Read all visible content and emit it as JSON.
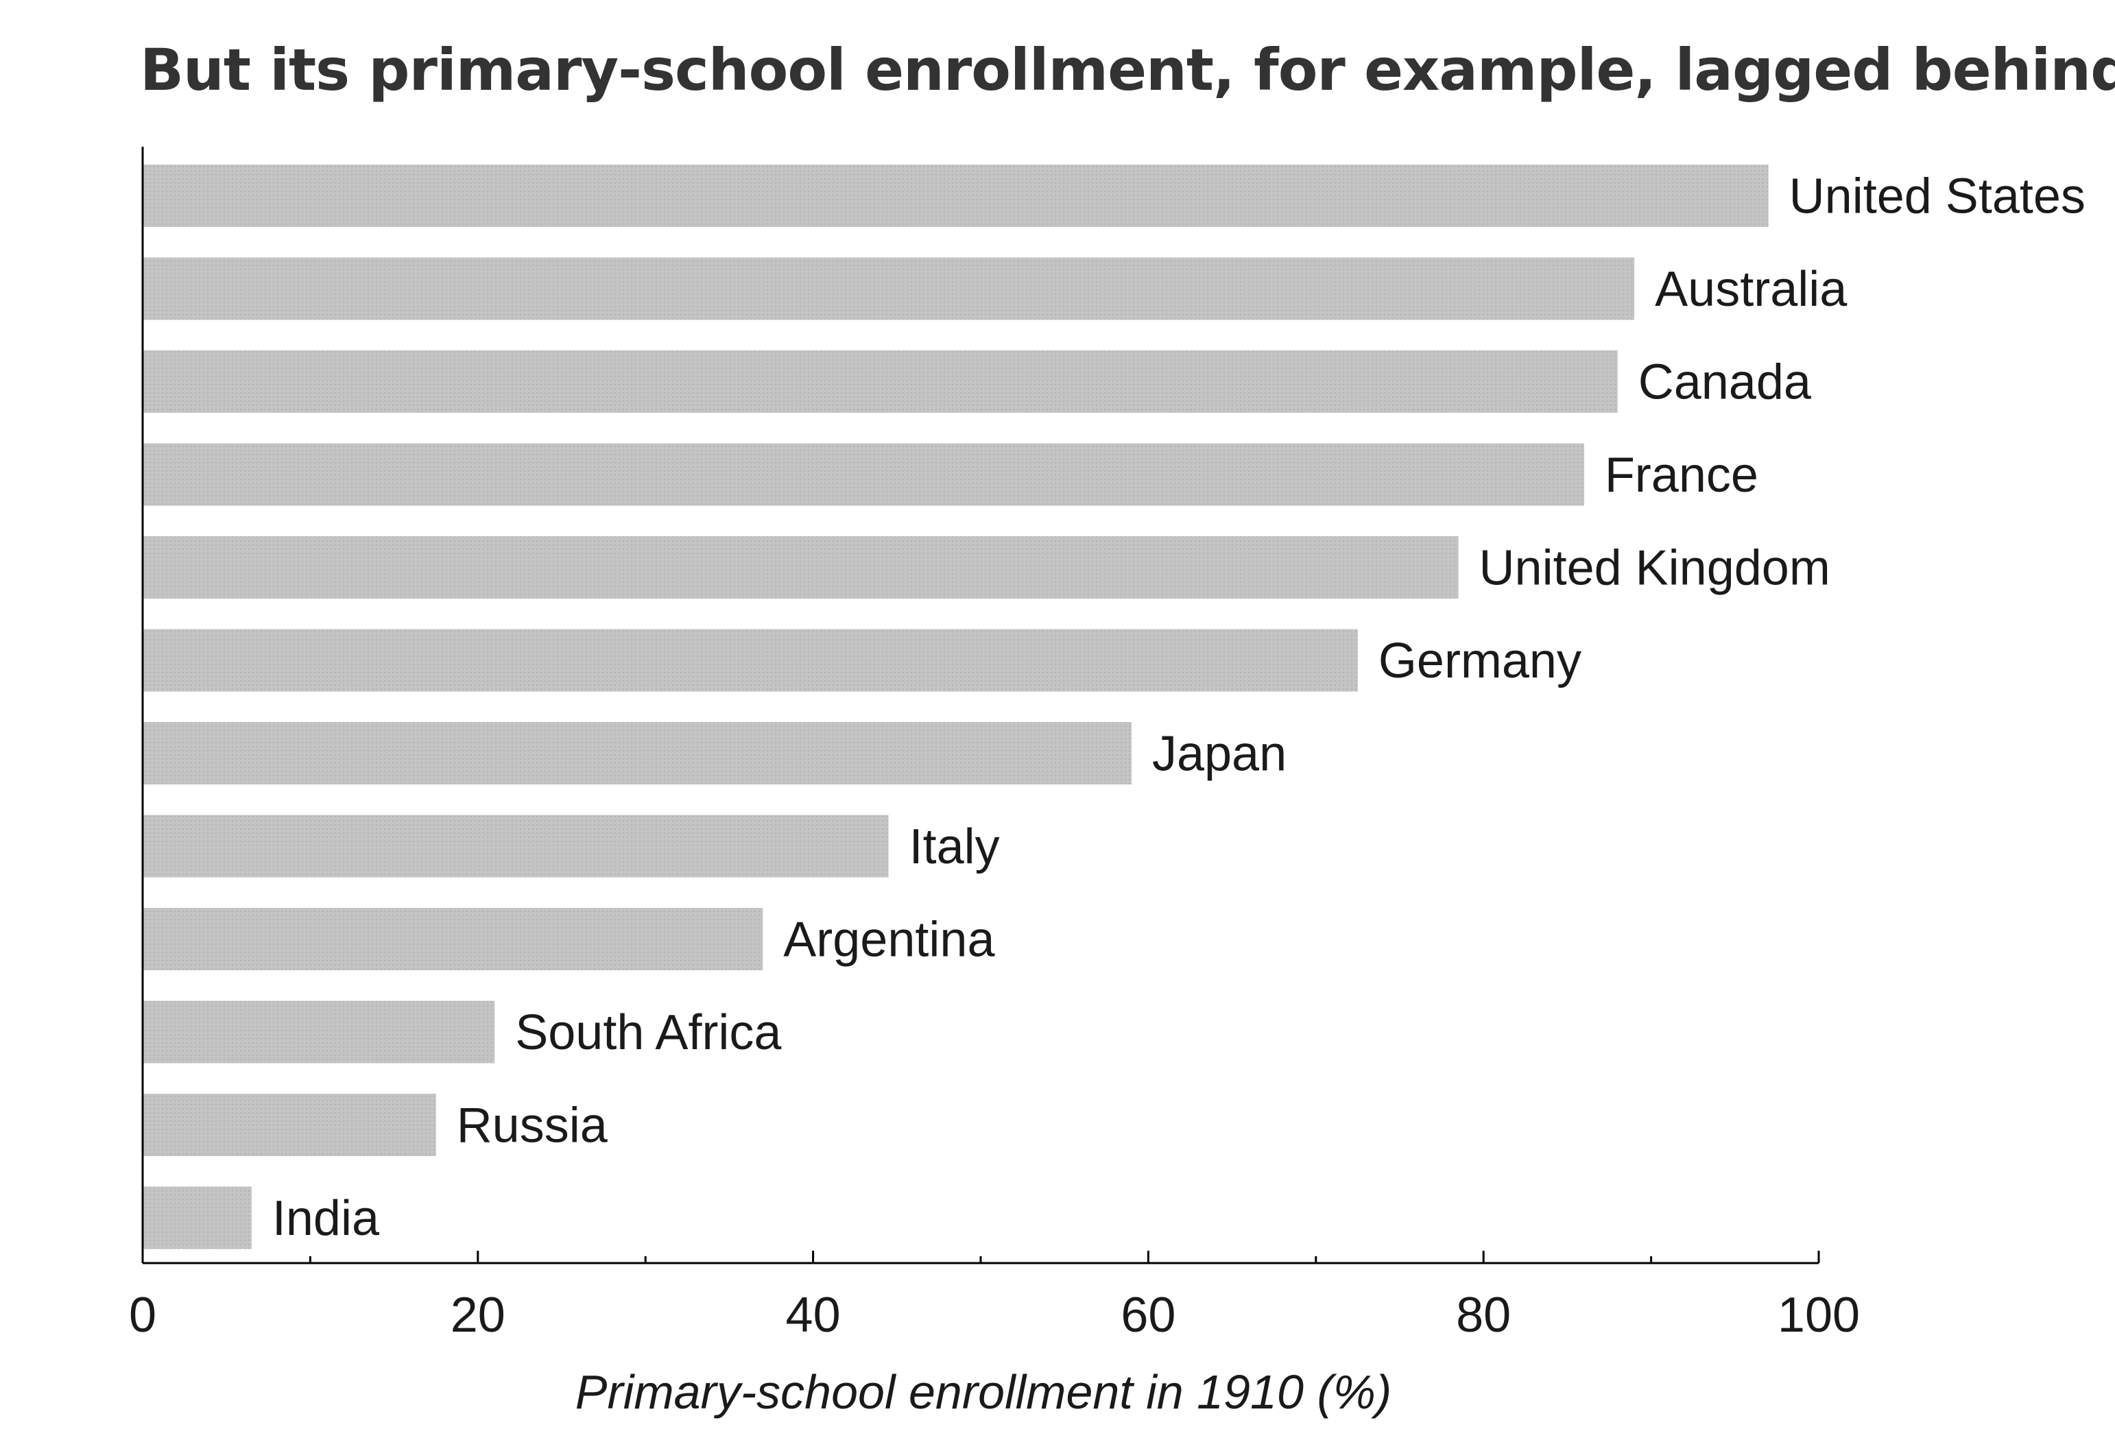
{
  "chart_data": {
    "type": "bar",
    "orientation": "horizontal",
    "title": "But its primary-school enrollment, for example, lagged behind.",
    "xlabel": "Primary-school enrollment in 1910 (%)",
    "ylabel": "",
    "categories": [
      "United States",
      "Australia",
      "Canada",
      "France",
      "United Kingdom",
      "Germany",
      "Japan",
      "Italy",
      "Argentina",
      "South Africa",
      "Russia",
      "India"
    ],
    "values": [
      97,
      89,
      88,
      86,
      78.5,
      72.5,
      59,
      44.5,
      37,
      21,
      17.5,
      6.5
    ],
    "xlim": [
      0,
      100
    ],
    "xticks": [
      "0",
      "20",
      "40",
      "60",
      "80",
      "100"
    ],
    "grid": false,
    "legend": "none",
    "colors": {
      "bar": "#c4c4c4",
      "bar_dots": "#b3b3b3",
      "axis": "#000000",
      "title": "#333333",
      "text": "#1a1a1a"
    }
  }
}
